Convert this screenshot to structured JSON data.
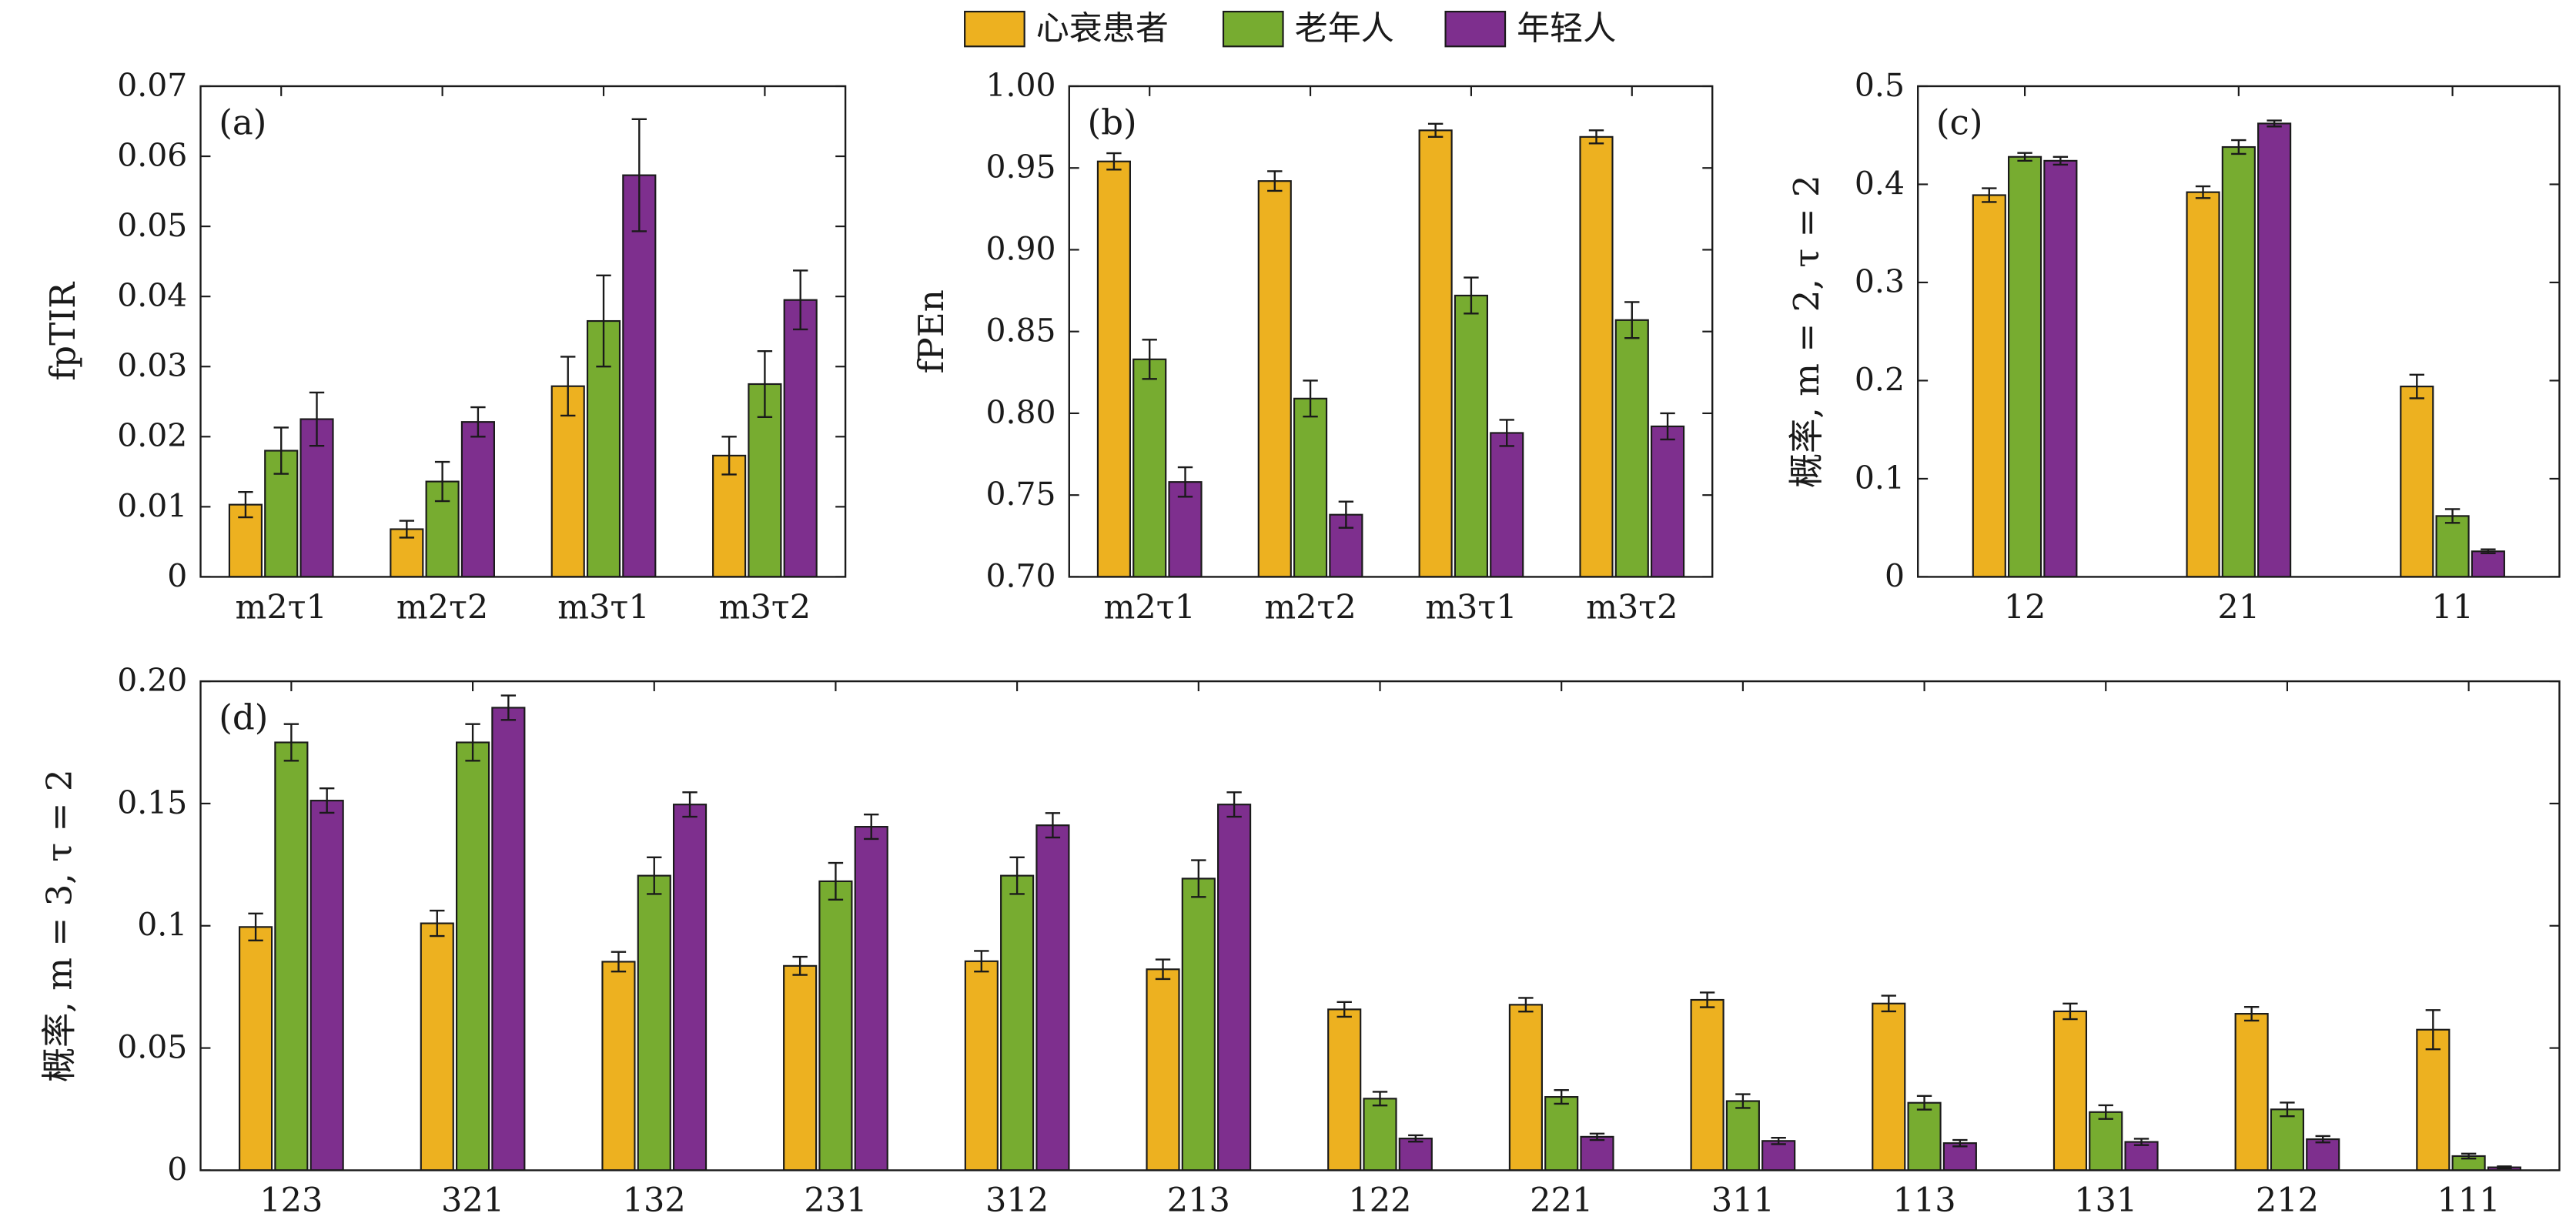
{
  "legend": [
    {
      "label": "心衰患者",
      "color": "#EDB120"
    },
    {
      "label": "老年人",
      "color": "#77AC30"
    },
    {
      "label": "年轻人",
      "color": "#7E2F8E"
    }
  ],
  "chart_data": [
    {
      "panel": "(a)",
      "type": "bar",
      "title": "",
      "ylabel": "fpTIR",
      "xlabel": "",
      "ylim": [
        0,
        0.07
      ],
      "yticks": [
        "0",
        "0.01",
        "0.02",
        "0.03",
        "0.04",
        "0.05",
        "0.06",
        "0.07"
      ],
      "categories": [
        "m2τ1",
        "m2τ2",
        "m3τ1",
        "m3τ2"
      ],
      "series": [
        {
          "name": "心衰患者",
          "values": [
            0.0103,
            0.0068,
            0.0272,
            0.0173
          ],
          "errors": [
            0.0018,
            0.0012,
            0.0042,
            0.0027
          ]
        },
        {
          "name": "老年人",
          "values": [
            0.018,
            0.0136,
            0.0365,
            0.0275
          ],
          "errors": [
            0.0033,
            0.0028,
            0.0065,
            0.0047
          ]
        },
        {
          "name": "年轻人",
          "values": [
            0.0225,
            0.0221,
            0.0573,
            0.0395
          ],
          "errors": [
            0.0038,
            0.0021,
            0.008,
            0.0042
          ]
        }
      ]
    },
    {
      "panel": "(b)",
      "type": "bar",
      "title": "",
      "ylabel": "fPEn",
      "xlabel": "",
      "ylim": [
        0.7,
        1.0
      ],
      "yticks": [
        "0.70",
        "0.75",
        "0.80",
        "0.85",
        "0.90",
        "0.95",
        "1.00"
      ],
      "categories": [
        "m2τ1",
        "m2τ2",
        "m3τ1",
        "m3τ2"
      ],
      "series": [
        {
          "name": "心衰患者",
          "values": [
            0.954,
            0.942,
            0.973,
            0.969
          ],
          "errors": [
            0.005,
            0.006,
            0.004,
            0.004
          ]
        },
        {
          "name": "老年人",
          "values": [
            0.833,
            0.809,
            0.872,
            0.857
          ],
          "errors": [
            0.012,
            0.011,
            0.011,
            0.011
          ]
        },
        {
          "name": "年轻人",
          "values": [
            0.758,
            0.738,
            0.788,
            0.792
          ],
          "errors": [
            0.009,
            0.008,
            0.008,
            0.008
          ]
        }
      ]
    },
    {
      "panel": "(c)",
      "type": "bar",
      "title": "",
      "ylabel": "概率, m = 2, τ = 2",
      "xlabel": "",
      "ylim": [
        0,
        0.5
      ],
      "yticks": [
        "0",
        "0.1",
        "0.2",
        "0.3",
        "0.4",
        "0.5"
      ],
      "categories": [
        "12",
        "21",
        "11"
      ],
      "series": [
        {
          "name": "心衰患者",
          "values": [
            0.389,
            0.392,
            0.194
          ],
          "errors": [
            0.007,
            0.006,
            0.012
          ]
        },
        {
          "name": "老年人",
          "values": [
            0.428,
            0.438,
            0.062
          ],
          "errors": [
            0.004,
            0.007,
            0.007
          ]
        },
        {
          "name": "年轻人",
          "values": [
            0.424,
            0.462,
            0.026
          ],
          "errors": [
            0.004,
            0.003,
            0.002
          ]
        }
      ]
    },
    {
      "panel": "(d)",
      "type": "bar",
      "title": "",
      "ylabel": "概率, m = 3, τ = 2",
      "xlabel": "",
      "ylim": [
        0,
        0.2
      ],
      "yticks": [
        "0",
        "0.05",
        "0.1",
        "0.15",
        "0.20"
      ],
      "categories": [
        "123",
        "321",
        "132",
        "231",
        "312",
        "213",
        "122",
        "221",
        "311",
        "113",
        "131",
        "212",
        "111"
      ],
      "series": [
        {
          "name": "心衰患者",
          "values": [
            0.0995,
            0.101,
            0.0853,
            0.0836,
            0.0855,
            0.0822,
            0.0658,
            0.0677,
            0.0697,
            0.0682,
            0.065,
            0.064,
            0.0575
          ],
          "errors": [
            0.0055,
            0.0052,
            0.004,
            0.0037,
            0.0042,
            0.004,
            0.003,
            0.0028,
            0.003,
            0.0032,
            0.0032,
            0.0028,
            0.008
          ]
        },
        {
          "name": "老年人",
          "values": [
            0.175,
            0.175,
            0.1205,
            0.1182,
            0.1205,
            0.1193,
            0.0293,
            0.03,
            0.0283,
            0.0276,
            0.0238,
            0.0249,
            0.0058
          ]
        },
        {
          "name": "年轻人",
          "values": [
            0.1512,
            0.1892,
            0.1496,
            0.1405,
            0.1411,
            0.1496,
            0.013,
            0.0137,
            0.012,
            0.0111,
            0.0116,
            0.0127,
            0.0012
          ]
        }
      ]
    }
  ]
}
